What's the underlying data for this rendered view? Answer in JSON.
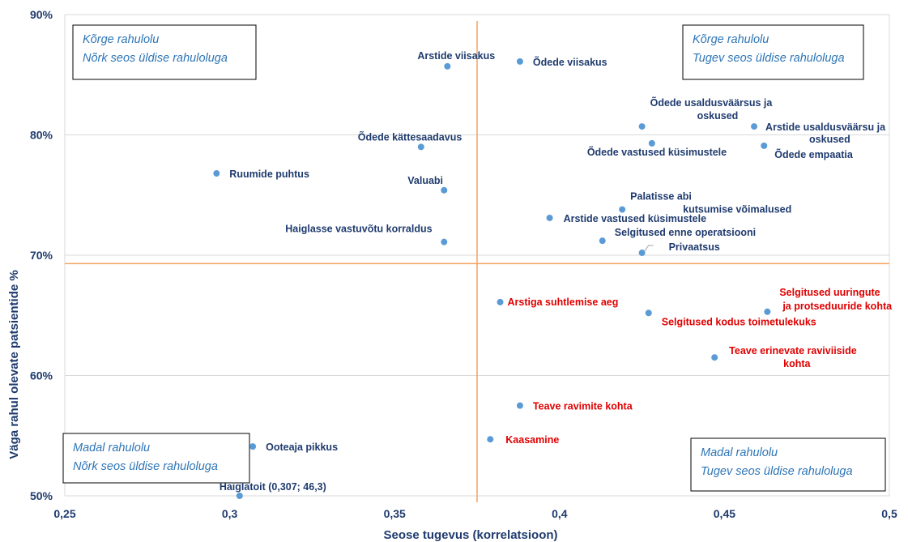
{
  "chart_data": {
    "type": "scatter",
    "xlabel": "Seose tugevus (korrelatsioon)",
    "ylabel": "Väga rahul olevate patsientide %",
    "xlim": [
      0.25,
      0.5
    ],
    "ylim": [
      50,
      90
    ],
    "x_ticks": [
      "0,25",
      "0,3",
      "0,35",
      "0,4",
      "0,45",
      "0,5"
    ],
    "y_ticks": [
      "50%",
      "60%",
      "70%",
      "80%",
      "90%"
    ],
    "grid": "horizontal",
    "threshold_x": 0.375,
    "threshold_y": 69.3,
    "colors": {
      "point": "#5b9bd5",
      "blue_label": "#1f3b6e",
      "red_label": "#e00000",
      "threshold_line": "#f4a460",
      "quadrant_text": "#2e75b6"
    },
    "quadrants": [
      {
        "id": "top-left",
        "lines": [
          "Kõrge rahulolu",
          "Nõrk seos üldise rahuloluga"
        ]
      },
      {
        "id": "top-right",
        "lines": [
          "Kõrge rahulolu",
          "Tugev seos üldise rahuloluga"
        ]
      },
      {
        "id": "bottom-left",
        "lines": [
          "Madal rahulolu",
          "Nõrk seos üldise rahuloluga"
        ]
      },
      {
        "id": "bottom-right",
        "lines": [
          "Madal rahulolu",
          "Tugev seos üldise rahuloluga"
        ]
      }
    ],
    "points": [
      {
        "name": "Arstide viisakus",
        "x": 0.366,
        "y": 85.7,
        "color": "blue"
      },
      {
        "name": "Õdede viisakus",
        "x": 0.388,
        "y": 86.1,
        "color": "blue"
      },
      {
        "name": "Õdede kättesaadavus",
        "x": 0.358,
        "y": 79.0,
        "color": "blue"
      },
      {
        "name": "Ruumide puhtus",
        "x": 0.296,
        "y": 76.8,
        "color": "blue"
      },
      {
        "name": "Valuabi",
        "x": 0.365,
        "y": 75.4,
        "color": "blue"
      },
      {
        "name": "Haiglasse vastuvõtu korraldus",
        "x": 0.365,
        "y": 71.1,
        "color": "blue"
      },
      {
        "name": "Õdede usaldusväärsus ja oskused",
        "x": 0.425,
        "y": 80.7,
        "color": "blue"
      },
      {
        "name": "Arstide usaldusväärsu ja oskused",
        "x": 0.459,
        "y": 80.7,
        "color": "blue"
      },
      {
        "name": "Õdede vastused küsimustele",
        "x": 0.428,
        "y": 79.3,
        "color": "blue"
      },
      {
        "name": "Õdede empaatia",
        "x": 0.462,
        "y": 79.1,
        "color": "blue"
      },
      {
        "name": "Palatisse abi kutsumise võimalused",
        "x": 0.419,
        "y": 73.8,
        "color": "blue"
      },
      {
        "name": "Arstide vastused küsimustele",
        "x": 0.397,
        "y": 73.1,
        "color": "blue"
      },
      {
        "name": "Selgitused enne operatsiooni",
        "x": 0.413,
        "y": 71.2,
        "color": "blue"
      },
      {
        "name": "Privaatsus",
        "x": 0.425,
        "y": 70.2,
        "color": "blue"
      },
      {
        "name": "Arstiga suhtlemise aeg",
        "x": 0.382,
        "y": 66.1,
        "color": "red"
      },
      {
        "name": "Selgitused kodus toimetulekuks",
        "x": 0.427,
        "y": 65.2,
        "color": "red"
      },
      {
        "name": "Selgitused uuringute ja protseduuride kohta",
        "x": 0.463,
        "y": 65.3,
        "color": "red"
      },
      {
        "name": "Teave erinevate raviviiside kohta",
        "x": 0.447,
        "y": 61.5,
        "color": "red"
      },
      {
        "name": "Teave ravimite kohta",
        "x": 0.388,
        "y": 57.5,
        "color": "red"
      },
      {
        "name": "Kaasamine",
        "x": 0.379,
        "y": 54.7,
        "color": "red"
      },
      {
        "name": "Ooteaja pikkus",
        "x": 0.307,
        "y": 54.1,
        "color": "blue"
      },
      {
        "name": "Haiglatoit (0,307; 46,3)",
        "x": 0.303,
        "y": 50.0,
        "color": "blue"
      }
    ]
  }
}
